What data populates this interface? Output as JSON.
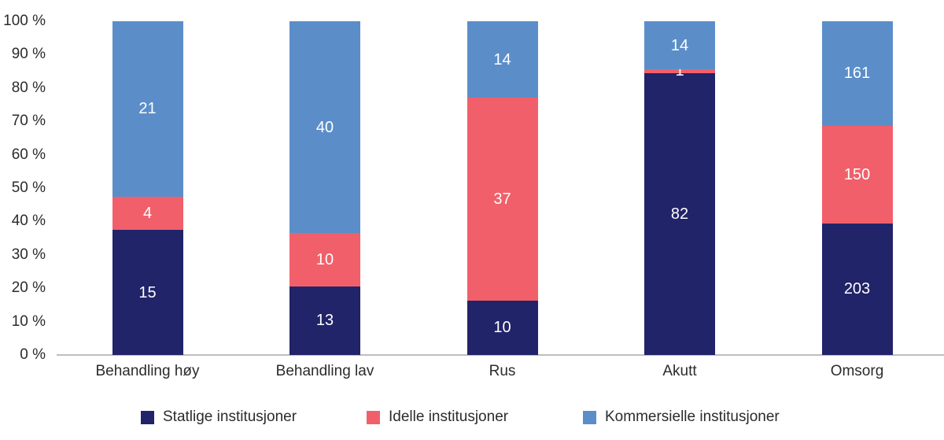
{
  "chart_data": {
    "type": "bar",
    "stacked": true,
    "percent_stacked": true,
    "title": "",
    "xlabel": "",
    "ylabel": "",
    "ylim": [
      0,
      100
    ],
    "grid": false,
    "legend_position": "bottom",
    "categories": [
      "Behandling høy",
      "Behandling lav",
      "Rus",
      "Akutt",
      "Omsorg"
    ],
    "series": [
      {
        "name": "Statlige institusjoner",
        "color": "#212469",
        "values": [
          15,
          13,
          10,
          82,
          203
        ]
      },
      {
        "name": "Idelle institusjoner",
        "color": "#f1606a",
        "values": [
          4,
          10,
          37,
          1,
          150
        ]
      },
      {
        "name": "Kommersielle institusjoner",
        "color": "#5b8ec9",
        "values": [
          21,
          40,
          14,
          14,
          161
        ]
      }
    ],
    "y_ticks": [
      "100 %",
      "90 %",
      "80 %",
      "70 %",
      "60 %",
      "50 %",
      "40 %",
      "30 %",
      "20 %",
      "10 %",
      "0 %"
    ],
    "colors": {
      "axis_line": "#bfbfbf",
      "tick_text": "#2b2b2b",
      "value_label": "#ffffff"
    }
  }
}
